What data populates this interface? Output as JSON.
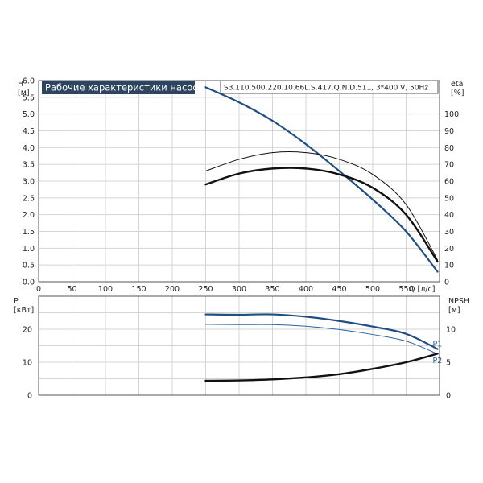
{
  "title": "Рабочие характеристики насоса",
  "model": "S3.110.500.220.10.66L.S.417.Q.N.D.511, 3*400 V, 50Hz",
  "colors": {
    "blue": "#1f4f82",
    "light_blue": "#2a62a0",
    "black": "#111111"
  },
  "chart_data": [
    {
      "name": "upper",
      "type": "line",
      "xlabel": "Q [л/с]",
      "ylabel": "H\n[м]",
      "ylabel_right": "eta\n[%]",
      "xlim": [
        0,
        600
      ],
      "ylim": [
        0,
        6
      ],
      "ylim_right": [
        0,
        120
      ],
      "x_ticks": [
        0,
        50,
        100,
        150,
        200,
        250,
        300,
        350,
        400,
        450,
        500,
        550
      ],
      "y_ticks": [
        "0.0",
        "0.5",
        "1.0",
        "1.5",
        "2.0",
        "2.5",
        "3.0",
        "3.5",
        "4.0",
        "4.5",
        "5.0",
        "5.5",
        "6.0"
      ],
      "y_ticks_right": [
        0,
        10,
        20,
        30,
        40,
        50,
        60,
        70,
        80,
        90,
        100
      ],
      "grid": true,
      "series": [
        {
          "id": "head",
          "axis": "left",
          "color": "#1f4f82",
          "width": 2.2,
          "x": [
            250,
            300,
            350,
            400,
            450,
            500,
            550,
            597
          ],
          "y": [
            5.8,
            5.35,
            4.8,
            4.1,
            3.3,
            2.45,
            1.5,
            0.3
          ]
        },
        {
          "id": "eta_hydraulic",
          "axis": "right",
          "color": "#111111",
          "width": 1,
          "x": [
            250,
            300,
            350,
            400,
            450,
            500,
            550,
            597
          ],
          "y": [
            66,
            73,
            77,
            77,
            73,
            64,
            46,
            13
          ]
        },
        {
          "id": "eta_total",
          "axis": "right",
          "color": "#111111",
          "width": 2.4,
          "x": [
            250,
            300,
            350,
            400,
            450,
            500,
            550,
            597
          ],
          "y": [
            58,
            64.5,
            67.5,
            67.5,
            64,
            56,
            40,
            12
          ]
        }
      ]
    },
    {
      "name": "lower",
      "type": "line",
      "ylabel": "P\n[кВт]",
      "ylabel_right": "NPSH\n[м]",
      "xlim": [
        0,
        600
      ],
      "ylim": [
        0,
        30
      ],
      "ylim_right": [
        0,
        15
      ],
      "y_ticks": [
        0,
        10,
        20
      ],
      "y_ticks_right": [
        0,
        5,
        10
      ],
      "grid": true,
      "series": [
        {
          "id": "P1",
          "name": "P1",
          "axis": "left",
          "color": "#1f4f82",
          "width": 2.2,
          "x": [
            250,
            300,
            350,
            400,
            450,
            500,
            550,
            597
          ],
          "y": [
            24.5,
            24.4,
            24.5,
            23.8,
            22.5,
            20.8,
            18.6,
            14.0
          ]
        },
        {
          "id": "P2",
          "name": "P2",
          "axis": "left",
          "color": "#2a62a0",
          "width": 1,
          "x": [
            250,
            300,
            350,
            400,
            450,
            500,
            550,
            597
          ],
          "y": [
            21.5,
            21.4,
            21.4,
            20.9,
            19.9,
            18.4,
            16.4,
            12.5
          ]
        },
        {
          "id": "NPSH",
          "axis": "right",
          "color": "#111111",
          "width": 2.4,
          "x": [
            250,
            300,
            350,
            400,
            450,
            500,
            550,
            597
          ],
          "y": [
            2.2,
            2.25,
            2.4,
            2.7,
            3.2,
            4.0,
            5.0,
            6.3
          ]
        }
      ]
    }
  ]
}
